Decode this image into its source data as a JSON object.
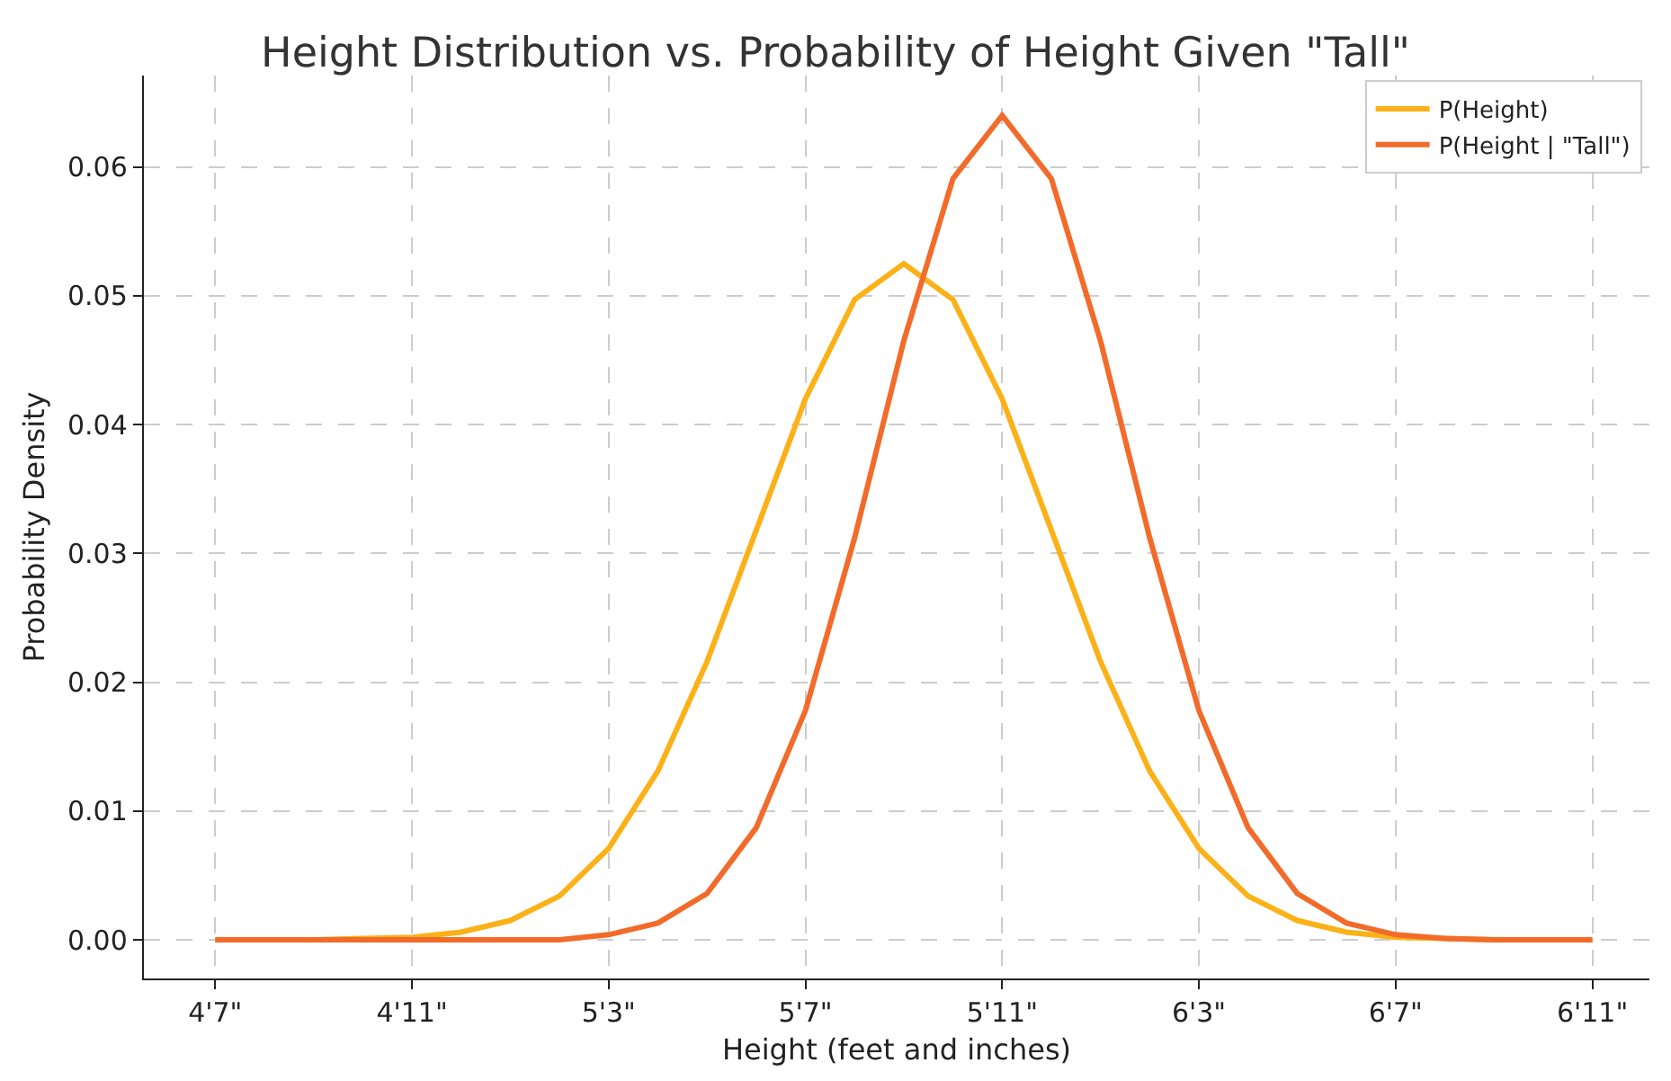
{
  "chart_data": {
    "type": "line",
    "title": "Height Distribution vs. Probability of Height Given \"Tall\"",
    "xlabel": "Height (feet and inches)",
    "ylabel": "Probability Density",
    "categories": [
      "4'7\"",
      null,
      null,
      null,
      "4'11\"",
      null,
      null,
      null,
      "5'3\"",
      null,
      null,
      null,
      "5'7\"",
      null,
      null,
      null,
      "5'11\"",
      null,
      null,
      null,
      "6'3\"",
      null,
      null,
      null,
      "6'7\"",
      null,
      null,
      null,
      "6'11\""
    ],
    "series": [
      {
        "name": "P(Height)",
        "color": "#fbb117",
        "values": [
          0,
          0,
          0,
          0.0001,
          0.0002,
          0.0006,
          0.0015,
          0.0034,
          0.0071,
          0.0131,
          0.0216,
          0.0318,
          0.042,
          0.0497,
          0.0525,
          0.0497,
          0.042,
          0.0318,
          0.0216,
          0.0131,
          0.0071,
          0.0034,
          0.0015,
          0.0006,
          0.0002,
          0.0001,
          0,
          0,
          0
        ]
      },
      {
        "name": "P(Height | \"Tall\")",
        "color": "#f26b2a",
        "values": [
          0,
          0,
          0,
          0,
          0,
          0,
          0,
          0,
          0.0004,
          0.0013,
          0.0036,
          0.0087,
          0.0178,
          0.0312,
          0.0465,
          0.0591,
          0.064,
          0.0591,
          0.0465,
          0.0312,
          0.0178,
          0.0087,
          0.0036,
          0.0013,
          0.0004,
          0.0001,
          0,
          0,
          0
        ]
      }
    ],
    "ylim": [
      -0.003,
      0.0671
    ],
    "yticks": [
      {
        "value": 0,
        "label": "0.00"
      },
      {
        "value": 0.01,
        "label": "0.01"
      },
      {
        "value": 0.02,
        "label": "0.02"
      },
      {
        "value": 0.03,
        "label": "0.03"
      },
      {
        "value": 0.04,
        "label": "0.04"
      },
      {
        "value": 0.05,
        "label": "0.05"
      },
      {
        "value": 0.06,
        "label": "0.06"
      }
    ],
    "grid": true,
    "legend": "top right",
    "line_style": "solid",
    "marker": "none"
  }
}
